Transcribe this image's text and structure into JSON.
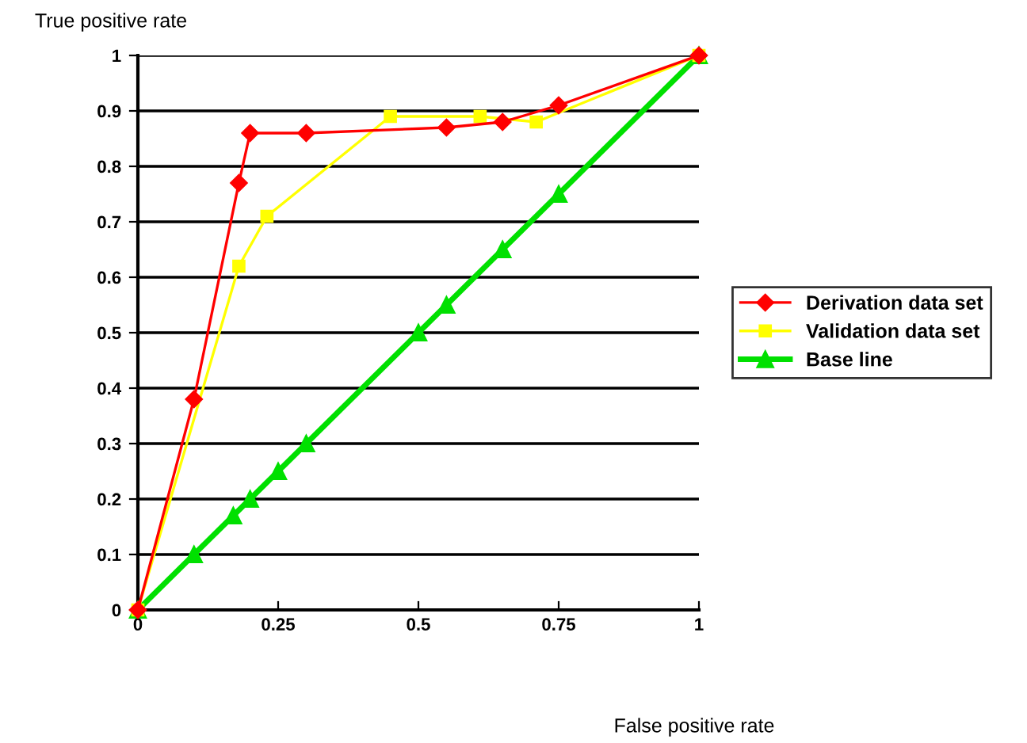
{
  "chart_data": {
    "type": "line",
    "xlabel": "False positive rate",
    "ylabel": "True positive rate",
    "xlim": [
      0,
      1
    ],
    "ylim": [
      0,
      1
    ],
    "xticks": [
      0,
      0.25,
      0.5,
      0.75,
      1
    ],
    "yticks": [
      0,
      0.1,
      0.2,
      0.3,
      0.4,
      0.5,
      0.6,
      0.7,
      0.8,
      0.9,
      1
    ],
    "grid": "y",
    "legend": "right",
    "series": [
      {
        "name": "Derivation data set",
        "color": "#ff0000",
        "marker": "diamond",
        "x": [
          0,
          0.1,
          0.18,
          0.2,
          0.3,
          0.55,
          0.65,
          0.75,
          1
        ],
        "values": [
          0,
          0.38,
          0.77,
          0.86,
          0.86,
          0.87,
          0.88,
          0.91,
          1
        ]
      },
      {
        "name": "Validation data set",
        "color": "#ffff00",
        "marker": "square",
        "x": [
          0,
          0.18,
          0.23,
          0.45,
          0.61,
          0.71,
          1
        ],
        "values": [
          0,
          0.62,
          0.71,
          0.89,
          0.89,
          0.88,
          1
        ]
      },
      {
        "name": "Base line",
        "color": "#00e000",
        "marker": "triangle",
        "x": [
          0,
          0.1,
          0.17,
          0.2,
          0.25,
          0.3,
          0.5,
          0.55,
          0.65,
          0.75,
          1
        ],
        "values": [
          0,
          0.1,
          0.17,
          0.2,
          0.25,
          0.3,
          0.5,
          0.55,
          0.65,
          0.75,
          1
        ]
      }
    ]
  }
}
